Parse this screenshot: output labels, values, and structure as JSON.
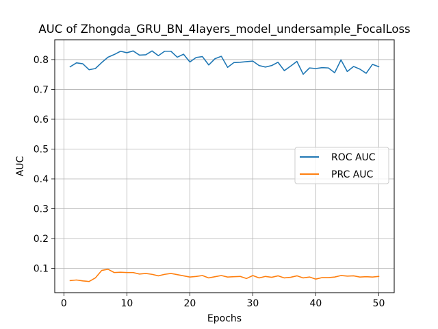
{
  "chart_data": {
    "type": "line",
    "title": "AUC of Zhongda_GRU_BN_4layers_model_undersample_FocalLoss",
    "xlabel": "Epochs",
    "ylabel": "AUC",
    "xlim": [
      -1.45,
      52.45
    ],
    "ylim": [
      0.0185,
      0.8665
    ],
    "xticks": [
      0,
      10,
      20,
      30,
      40,
      50
    ],
    "yticks": [
      0.1,
      0.2,
      0.3,
      0.4,
      0.5,
      0.6,
      0.7,
      0.8
    ],
    "ytick_labels": [
      "0.1",
      "0.2",
      "0.3",
      "0.4",
      "0.5",
      "0.6",
      "0.7",
      "0.8"
    ],
    "grid": true,
    "legend_position": "center-right",
    "x": [
      1,
      2,
      3,
      4,
      5,
      6,
      7,
      8,
      9,
      10,
      11,
      12,
      13,
      14,
      15,
      16,
      17,
      18,
      19,
      20,
      21,
      22,
      23,
      24,
      25,
      26,
      27,
      28,
      29,
      30,
      31,
      32,
      33,
      34,
      35,
      36,
      37,
      38,
      39,
      40,
      41,
      42,
      43,
      44,
      45,
      46,
      47,
      48,
      49,
      50
    ],
    "series": [
      {
        "name": "ROC AUC",
        "color": "#1f77b4",
        "values": [
          0.776,
          0.789,
          0.786,
          0.766,
          0.77,
          0.79,
          0.808,
          0.817,
          0.828,
          0.823,
          0.829,
          0.815,
          0.816,
          0.829,
          0.813,
          0.828,
          0.828,
          0.808,
          0.818,
          0.792,
          0.807,
          0.81,
          0.782,
          0.803,
          0.811,
          0.774,
          0.79,
          0.791,
          0.793,
          0.795,
          0.78,
          0.775,
          0.78,
          0.791,
          0.763,
          0.778,
          0.794,
          0.751,
          0.772,
          0.77,
          0.773,
          0.772,
          0.756,
          0.799,
          0.76,
          0.777,
          0.768,
          0.754,
          0.784,
          0.776
        ]
      },
      {
        "name": "PRC AUC",
        "color": "#ff7f0e",
        "values": [
          0.059,
          0.061,
          0.058,
          0.056,
          0.068,
          0.093,
          0.097,
          0.086,
          0.087,
          0.086,
          0.086,
          0.081,
          0.083,
          0.08,
          0.075,
          0.08,
          0.083,
          0.079,
          0.075,
          0.071,
          0.073,
          0.076,
          0.068,
          0.072,
          0.076,
          0.071,
          0.072,
          0.073,
          0.066,
          0.076,
          0.068,
          0.073,
          0.07,
          0.075,
          0.068,
          0.07,
          0.075,
          0.068,
          0.071,
          0.064,
          0.069,
          0.069,
          0.071,
          0.076,
          0.074,
          0.075,
          0.071,
          0.072,
          0.071,
          0.073
        ]
      }
    ]
  }
}
